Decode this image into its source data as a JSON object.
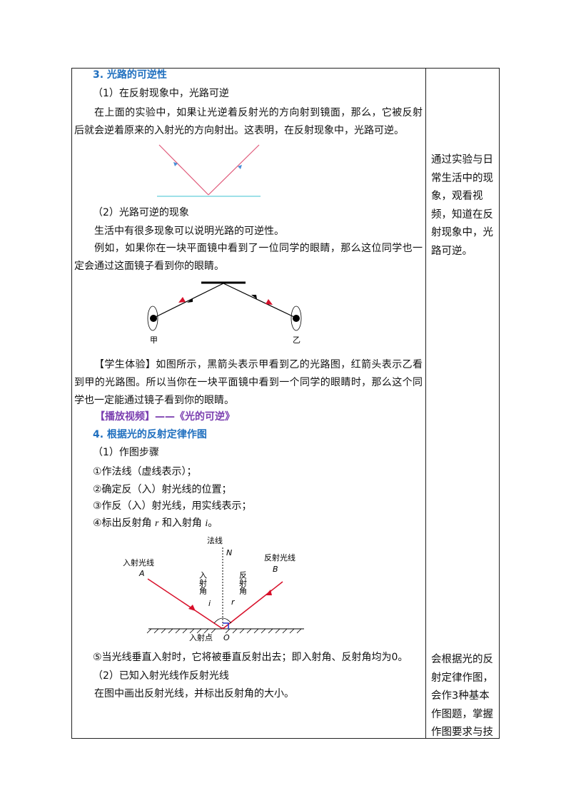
{
  "left": {
    "heading3": "3. 光路的可逆性",
    "sub1": "（1）在反射现象中，光路可逆",
    "para1": "在上面的实验中，如果让光逆着反射光的方向射到镜面，那么，它被反射后就会逆着原来的入射光的方向射出。这表明，在反射现象中，光路可逆。",
    "sub2": "（2）光路可逆的现象",
    "para2": "生活中有很多现象可以说明光路的可逆性。",
    "para3": "例如，如果你在一块平面镜中看到了一位同学的眼睛，那么这位同学也一定会通过这面镜子看到你的眼睛。",
    "eye_labels": [
      "甲",
      "乙"
    ],
    "para4": "【学生体验】如图所示，黑箭头表示甲看到乙的光路图，红箭头表示乙看到甲的光路图。所以当你在一块平面镜中看到一个同学的眼睛时，那么这个同学也一定能通过镜子看到你的眼睛。",
    "video": "【播放视频】——《光的可逆》",
    "heading4": "4. 根据光的反射定律作图",
    "sub3": "（1）作图步骤",
    "steps": [
      "①作法线（虚线表示）；",
      "②确定反（入）射光线的位置；",
      "③作反（入）射光线，用实线表示；"
    ],
    "step4": {
      "a": "④标出反射角",
      "r": "r",
      "b": "和入射角",
      "i": "i",
      "c": "。"
    },
    "diagram": {
      "normal": "法线",
      "N": "N",
      "incident": "入射光线",
      "A": "A",
      "reflected": "反射光线",
      "B": "B",
      "angle_in": "入射角",
      "angle_out": "反射角",
      "i": "i",
      "r": "r",
      "point": "入射点",
      "O": "O"
    },
    "step5": "⑤当光线垂直入射时，它将被垂直反射出去；即入射角、反射角均为0。",
    "sub4": "（2）已知入射光线作反射光线",
    "para5": "在图中画出反射光线，并标出反射角的大小。"
  },
  "right": {
    "note1": "通过实验与日常生活中的现象，观看视频，知道在反射现象中，光路可逆。",
    "note2": "会根据光的反射定律作图，会作3种基本作图题，掌握作图要求与技"
  }
}
